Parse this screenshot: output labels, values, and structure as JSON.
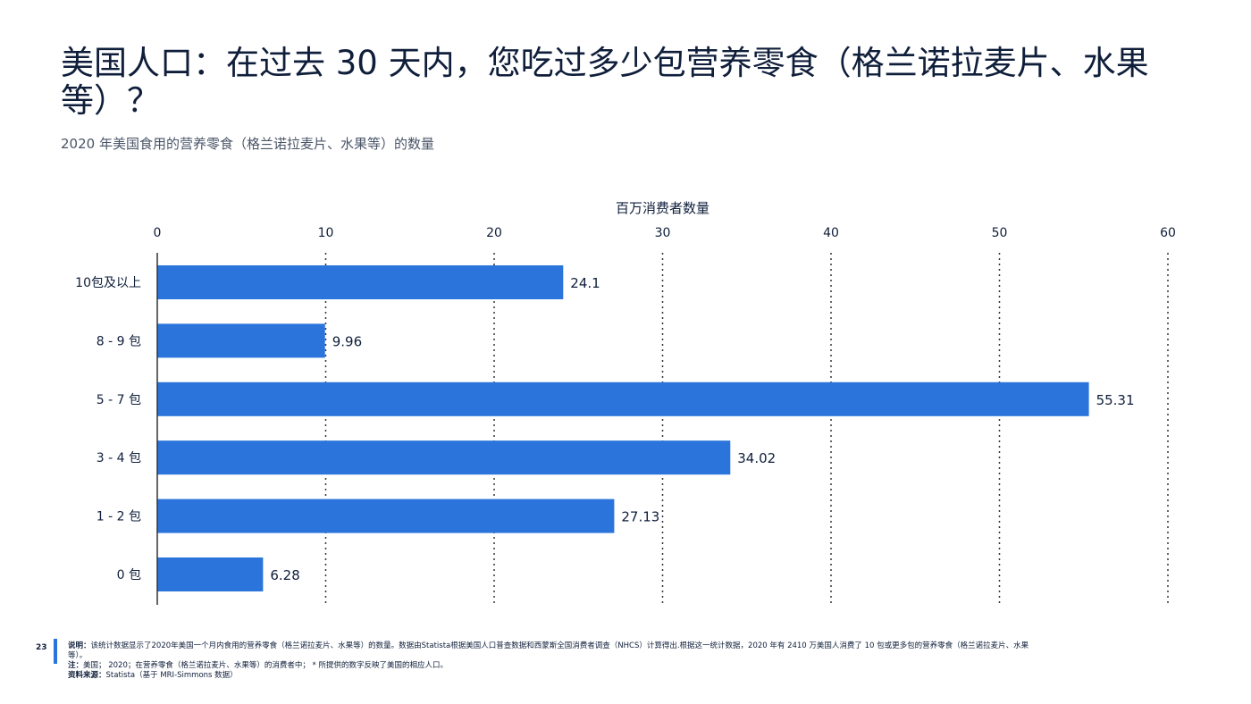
{
  "title": "美国人口：在过去 30 天内，您吃过多少包营养零食（格兰诺拉麦片、水果等）？",
  "subtitle": "2020 年美国食用的营养零食（格兰诺拉麦片、水果等）的数量",
  "colors": {
    "bar": "#2a74dc",
    "grid": "#333333",
    "text": "#0f1e3a",
    "accent": "#2a74dc"
  },
  "chart_data": {
    "type": "bar",
    "orientation": "horizontal",
    "title": "",
    "xlabel": "百万消费者数量",
    "ylabel": "",
    "xlim": [
      0,
      60
    ],
    "ticks": [
      0,
      10,
      20,
      30,
      40,
      50,
      60
    ],
    "grid": true,
    "categories": [
      "10包及以上",
      "8 - 9 包",
      "5 - 7 包",
      "3 - 4 包",
      "1 - 2 包",
      "0 包"
    ],
    "values": [
      24.1,
      9.96,
      55.31,
      34.02,
      27.13,
      6.28
    ],
    "value_labels": [
      "24.1",
      "9.96",
      "55.31",
      "34.02",
      "27.13",
      "6.28"
    ]
  },
  "footer": {
    "page_number": "23",
    "description_label": "说明：",
    "description": "该统计数据显示了2020年美国一个月内食用的营养零食（格兰诺拉麦片、水果等）的数量。数据由Statista根据美国人口普查数据和西蒙斯全国消费者调查（NHCS）计算得出.根据这一统计数据，2020 年有 2410 万美国人消费了 10 包或更多包的营养零食（格兰诺拉麦片、水果等）。",
    "note_label": "注：",
    "note": "美国； 2020；在营养零食（格兰诺拉麦片、水果等）的消费者中； * 所提供的数字反映了美国的相应人口。",
    "source_label": "资料来源：",
    "source": "Statista（基于 MRI-Simmons 数据）"
  }
}
